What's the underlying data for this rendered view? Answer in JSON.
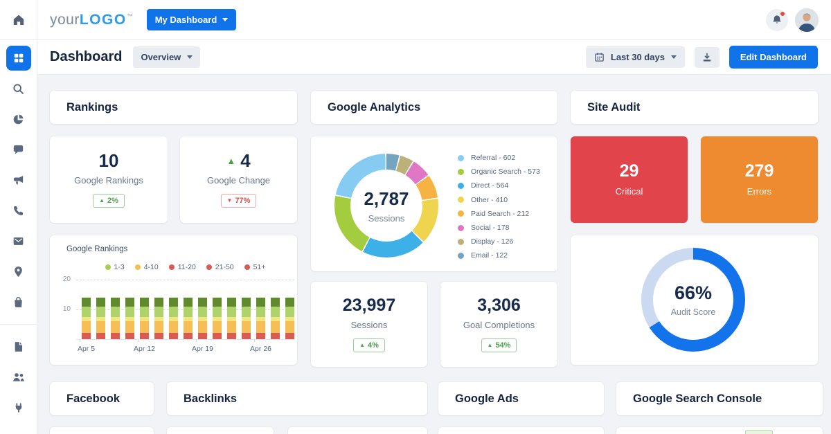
{
  "glyphs": {
    "arrow_up": "▲",
    "arrow_down": "▼"
  },
  "navbar": {
    "logo": {
      "prefix": "your",
      "bold": "LOGO",
      "tm": "™"
    },
    "dashboard_menu": {
      "label": "My Dashboard"
    }
  },
  "page_header": {
    "title": "Dashboard",
    "overview_dropdown": {
      "label": "Overview"
    },
    "date_range": {
      "label": "Last 30 days"
    },
    "edit_button": {
      "label": "Edit Dashboard"
    }
  },
  "sidebar": {
    "items": [
      {
        "icon": "dashboard",
        "active": true
      },
      {
        "icon": "search"
      },
      {
        "icon": "pie-chart"
      },
      {
        "icon": "chat"
      },
      {
        "icon": "megaphone"
      },
      {
        "icon": "phone"
      },
      {
        "icon": "mail"
      },
      {
        "icon": "location"
      },
      {
        "icon": "shopping-bag"
      },
      {
        "icon": "divider"
      },
      {
        "icon": "file"
      },
      {
        "icon": "users"
      },
      {
        "icon": "plug"
      }
    ]
  },
  "rankings": {
    "title": "Rankings",
    "stats": [
      {
        "value": "10",
        "label": "Google Rankings",
        "badge": {
          "direction": "up",
          "text": "2%",
          "color": "green"
        }
      },
      {
        "value": "4",
        "value_arrow": "up",
        "label": "Google Change",
        "badge": {
          "direction": "down",
          "text": "77%",
          "color": "red"
        }
      }
    ]
  },
  "google_analytics": {
    "title": "Google Analytics",
    "stats": [
      {
        "value": "23,997",
        "label": "Sessions",
        "badge": {
          "direction": "up",
          "text": "4%",
          "color": "green"
        }
      },
      {
        "value": "3,306",
        "label": "Goal Completions",
        "badge": {
          "direction": "up",
          "text": "54%",
          "color": "green"
        }
      }
    ]
  },
  "site_audit": {
    "title": "Site Audit",
    "critical": {
      "value": "29",
      "label": "Critical",
      "bg": "#E2444C"
    },
    "errors": {
      "value": "279",
      "label": "Errors",
      "bg": "#EE8A30"
    }
  },
  "bottom_sections": [
    {
      "title": "Facebook"
    },
    {
      "title": "Backlinks"
    },
    {
      "title": "Google Ads"
    },
    {
      "title": "Google Search Console"
    }
  ],
  "chart_data": [
    {
      "id": "google-rankings-stacked-bars",
      "type": "bar",
      "stacked": true,
      "title": "Google Rankings",
      "xlabel": "",
      "ylabel": "",
      "ylim": [
        0,
        22
      ],
      "yticks": [
        10,
        20
      ],
      "grid": "dashed-horizontal",
      "bar_count": 15,
      "x_tick_labels": [
        "Apr 5",
        "Apr 12",
        "Apr 19",
        "Apr 26"
      ],
      "x_tick_bar_indexes": [
        0,
        4,
        8,
        12
      ],
      "legend": [
        {
          "label": "1-3",
          "color": "#A8CF4D"
        },
        {
          "label": "4-10",
          "color": "#F5BE4F"
        },
        {
          "label": "11-20",
          "color": "#DA5B55"
        },
        {
          "label": "21-50",
          "color": "#DA5B55"
        },
        {
          "label": "51+",
          "color": "#DA5B55"
        }
      ],
      "series": [
        {
          "name": "segment-red-bottom",
          "color": "#D95B54",
          "values": [
            2,
            2,
            2,
            2,
            2,
            2,
            2,
            2,
            2,
            2,
            2,
            2,
            2,
            2,
            2
          ]
        },
        {
          "name": "segment-orange",
          "color": "#F7BE56",
          "values": [
            4,
            4,
            4,
            4,
            4,
            4,
            4,
            4,
            4,
            4,
            4,
            4,
            4,
            4,
            4
          ]
        },
        {
          "name": "segment-pale-yellow",
          "color": "#F1E580",
          "values": [
            1.5,
            1.5,
            1.5,
            1.5,
            1.5,
            1.5,
            1.5,
            1.5,
            1.5,
            1.5,
            1.5,
            1.5,
            1.5,
            1.5,
            1.5
          ]
        },
        {
          "name": "segment-light-green",
          "color": "#AED36A",
          "values": [
            3.5,
            3.5,
            3.5,
            3.5,
            3.5,
            3.5,
            3.5,
            3.5,
            3.5,
            3.5,
            3.5,
            3.5,
            3.5,
            3.5,
            3.5
          ]
        },
        {
          "name": "segment-dark-green",
          "color": "#618A2C",
          "values": [
            3,
            3,
            3,
            3,
            3,
            3,
            3,
            3,
            3,
            3,
            3,
            3,
            3,
            3,
            3
          ]
        }
      ],
      "stack_order": "bottom-to-top"
    },
    {
      "id": "sessions-by-channel-donut",
      "type": "pie",
      "donut": true,
      "center": {
        "value": "2,787",
        "label": "Sessions"
      },
      "total": 2787,
      "slices": [
        {
          "label": "Referral",
          "value": 602,
          "color": "#85CBF2"
        },
        {
          "label": "Organic Search",
          "value": 573,
          "color": "#A3CC3E"
        },
        {
          "label": "Direct",
          "value": 564,
          "color": "#3EB0E8"
        },
        {
          "label": "Other",
          "value": 410,
          "color": "#EFD44D"
        },
        {
          "label": "Paid Search",
          "value": 212,
          "color": "#F6B344"
        },
        {
          "label": "Social",
          "value": 178,
          "color": "#E077C4"
        },
        {
          "label": "Display",
          "value": 126,
          "color": "#BCB279"
        },
        {
          "label": "Email",
          "value": 122,
          "color": "#73A5BE"
        }
      ],
      "legend_position": "right",
      "legend_separator": " - "
    },
    {
      "id": "audit-score-donut",
      "type": "pie",
      "donut": true,
      "percent": 66,
      "center": {
        "value": "66%",
        "label": "Audit Score"
      },
      "colors": {
        "value": "#1273EB",
        "track": "#CBDAF1"
      }
    }
  ]
}
